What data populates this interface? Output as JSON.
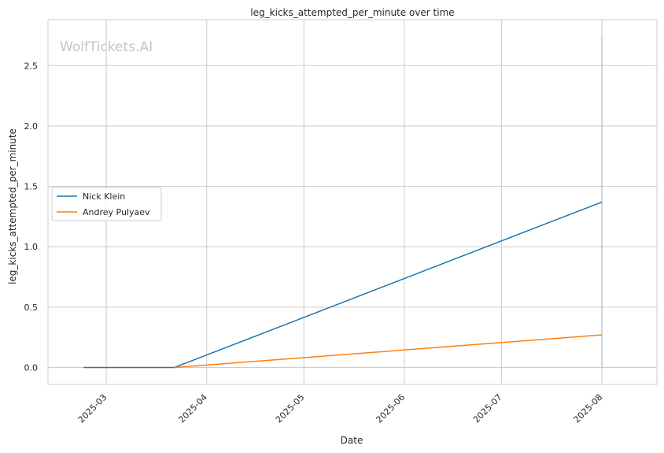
{
  "chart_data": {
    "type": "line",
    "title": "leg_kicks_attempted_per_minute over time",
    "xlabel": "Date",
    "ylabel": "leg_kicks_attempted_per_minute",
    "watermark": "WolfTickets.AI",
    "ylim": [
      -0.14,
      2.88
    ],
    "xlim": [
      "2025-02-11",
      "2025-08-18"
    ],
    "yticks": [
      0.0,
      0.5,
      1.0,
      1.5,
      2.0,
      2.5
    ],
    "ytick_labels": [
      "0.0",
      "0.5",
      "1.0",
      "1.5",
      "2.0",
      "2.5"
    ],
    "xticks": [
      "2025-03-01",
      "2025-04-01",
      "2025-05-01",
      "2025-06-01",
      "2025-07-01",
      "2025-08-01"
    ],
    "xtick_labels": [
      "2025-03",
      "2025-04",
      "2025-05",
      "2025-06",
      "2025-07",
      "2025-08"
    ],
    "grid": true,
    "legend_position": "center-left",
    "series": [
      {
        "name": "Nick Klein",
        "color": "#1f77b4",
        "points": [
          {
            "x": "2025-02-22",
            "y": 0.0
          },
          {
            "x": "2025-03-22",
            "y": 0.0
          },
          {
            "x": "2025-08-01",
            "y": 1.37
          }
        ]
      },
      {
        "name": "Andrey Pulyaev",
        "color": "#ff7f0e",
        "points": [
          {
            "x": "2025-03-22",
            "y": 0.0
          },
          {
            "x": "2025-08-01",
            "y": 0.27
          }
        ]
      }
    ]
  }
}
